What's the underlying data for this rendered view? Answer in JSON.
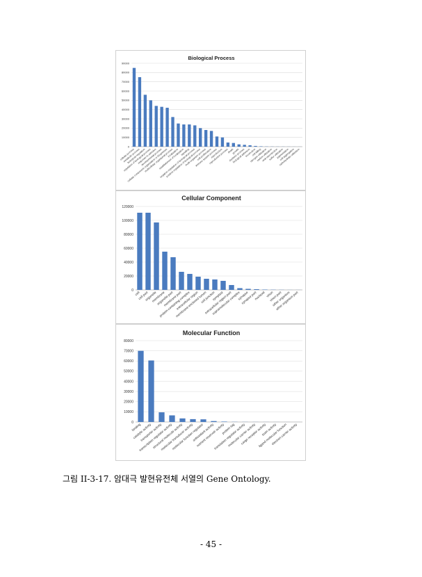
{
  "caption": "그림 II-3-17. 암대극 발현유전체 서열의 Gene Ontology.",
  "page_number": "- 45 -",
  "colors": {
    "bar": "#4a7bbf",
    "grid": "#d9d9d9",
    "axis": "#888888"
  },
  "chart_data": [
    {
      "type": "bar",
      "title": "Biological Process",
      "ylim": [
        0,
        90000
      ],
      "yticks": [
        0,
        10000,
        20000,
        30000,
        40000,
        50000,
        60000,
        70000,
        80000,
        90000
      ],
      "grid": true,
      "categories": [
        "cellular process",
        "metabolic process",
        "biological regulation",
        "regulation of biological process",
        "response to stimulus",
        "developmental process",
        "cellular component organization or biogenesis",
        "multicellular organismal process",
        "localization",
        "establishment of localization",
        "signaling",
        "negative regulation of biological process",
        "positive regulation of biological process",
        "multi-organism process",
        "cell proliferation",
        "immune system process",
        "reproduction",
        "reproductive process",
        "death",
        "growth",
        "rhythmic process",
        "biological adhesion",
        "locomotion",
        "cell killing",
        "nitrogen utilization",
        "carbon utilization",
        "viral reproduction",
        "sulfur utilization",
        "pigmentation",
        "cell aggregation",
        "carbohydrate utilization"
      ],
      "values": [
        85000,
        75000,
        56000,
        50000,
        44000,
        43000,
        42000,
        32000,
        25000,
        24000,
        24000,
        23000,
        20000,
        18000,
        17000,
        11000,
        10000,
        4500,
        4000,
        2500,
        2000,
        1500,
        800,
        400,
        200,
        150,
        120,
        100,
        80,
        60,
        50
      ]
    },
    {
      "type": "bar",
      "title": "Cellular Component",
      "ylim": [
        0,
        120000
      ],
      "yticks": [
        0,
        20000,
        40000,
        60000,
        80000,
        100000,
        120000
      ],
      "grid": true,
      "categories": [
        "cell",
        "cell part",
        "organelle",
        "membrane",
        "organelle part",
        "membrane part",
        "protein-containing complex",
        "extracellular region",
        "membrane-enclosed lumen",
        "cell junction",
        "symplast",
        "extracellular region part",
        "supramolecular complex",
        "synapse",
        "synapse part",
        "nucleoid",
        "virion",
        "virion part",
        "other organism",
        "other organism part"
      ],
      "values": [
        111000,
        111000,
        97000,
        55000,
        47000,
        26000,
        23000,
        19000,
        16000,
        15000,
        13000,
        7000,
        2500,
        1500,
        1000,
        500,
        300,
        200,
        100,
        80
      ]
    },
    {
      "type": "bar",
      "title": "Molecular Function",
      "ylim": [
        0,
        80000
      ],
      "yticks": [
        0,
        10000,
        20000,
        30000,
        40000,
        50000,
        60000,
        70000,
        80000
      ],
      "grid": true,
      "categories": [
        "binding",
        "catalytic activity",
        "transporter activity",
        "transcription regulator activity",
        "structural molecule activity",
        "molecular transducer activity",
        "molecular function regulator",
        "antioxidant activity",
        "nutrient reservoir activity",
        "protein tag",
        "translation regulator activity",
        "molecular carrier activity",
        "cargo receptor activity",
        "toxin activity",
        "ligand molecular function",
        "electron carrier activity"
      ],
      "values": [
        70000,
        60500,
        9500,
        6500,
        3500,
        2800,
        2600,
        900,
        400,
        150,
        100,
        80,
        60,
        40,
        30,
        20
      ]
    }
  ]
}
